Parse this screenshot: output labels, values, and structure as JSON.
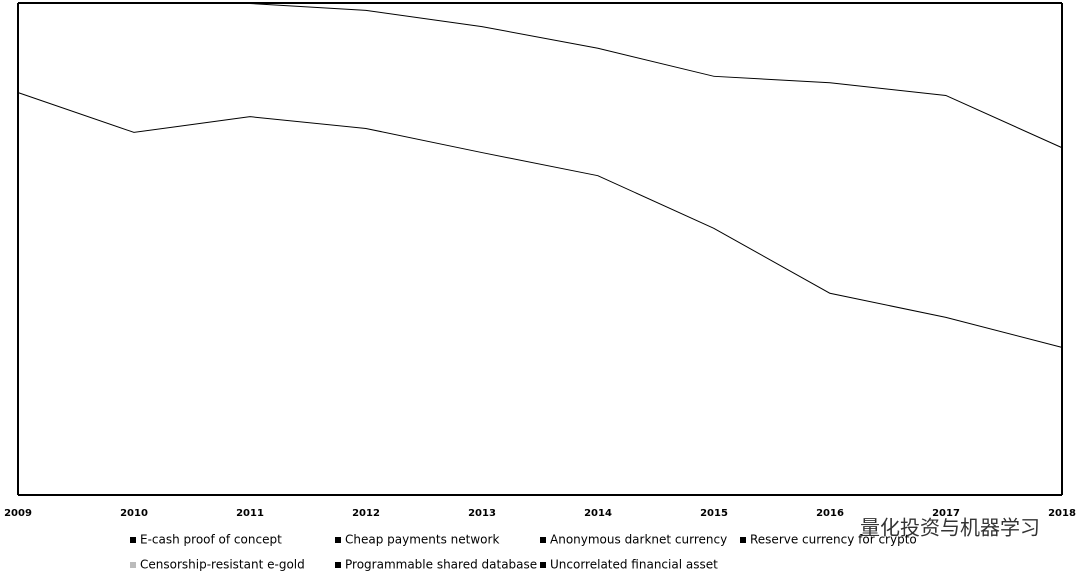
{
  "chart_data": {
    "type": "stacked-area",
    "categories": [
      "2009",
      "2010",
      "2011",
      "2012",
      "2013",
      "2014",
      "2015",
      "2016",
      "2017",
      "2018"
    ],
    "ylim": [
      0,
      100
    ],
    "series": [
      {
        "name": "E-cash proof of concept",
        "color": "#000000",
        "values": [
          81.9,
          73.8,
          77.0,
          74.6,
          69.7,
          65.0,
          54.3,
          41.1,
          36.2,
          30.1
        ]
      },
      {
        "name": "Cheap payments network",
        "color": "#000000",
        "values": [
          18.1,
          26.2,
          23.0,
          24.0,
          25.6,
          25.9,
          30.9,
          42.8,
          45.1,
          40.6
        ]
      },
      {
        "name": "Anonymous darknet currency",
        "color": "#000000",
        "values": [
          0,
          0,
          0,
          1.4,
          4.7,
          9.1,
          14.8,
          16.1,
          18.7,
          29.3
        ]
      },
      {
        "name": "Reserve currency for crypto",
        "color": "#000000",
        "values": [
          0,
          0,
          0,
          0,
          0,
          0,
          0,
          0,
          0,
          0
        ]
      },
      {
        "name": "Censorship-resistant e-gold",
        "color": "#bbbbbb",
        "values": [
          0,
          0,
          0,
          0,
          0,
          0,
          0,
          0,
          0,
          0
        ]
      },
      {
        "name": "Programmable shared database",
        "color": "#000000",
        "values": [
          0,
          0,
          0,
          0,
          0,
          0,
          0,
          0,
          0,
          0
        ]
      },
      {
        "name": "Uncorrelated financial asset",
        "color": "#000000",
        "values": [
          0,
          0,
          0,
          0,
          0,
          0,
          0,
          0,
          0,
          0
        ]
      }
    ],
    "watermark": "量化投资与机器学习"
  }
}
